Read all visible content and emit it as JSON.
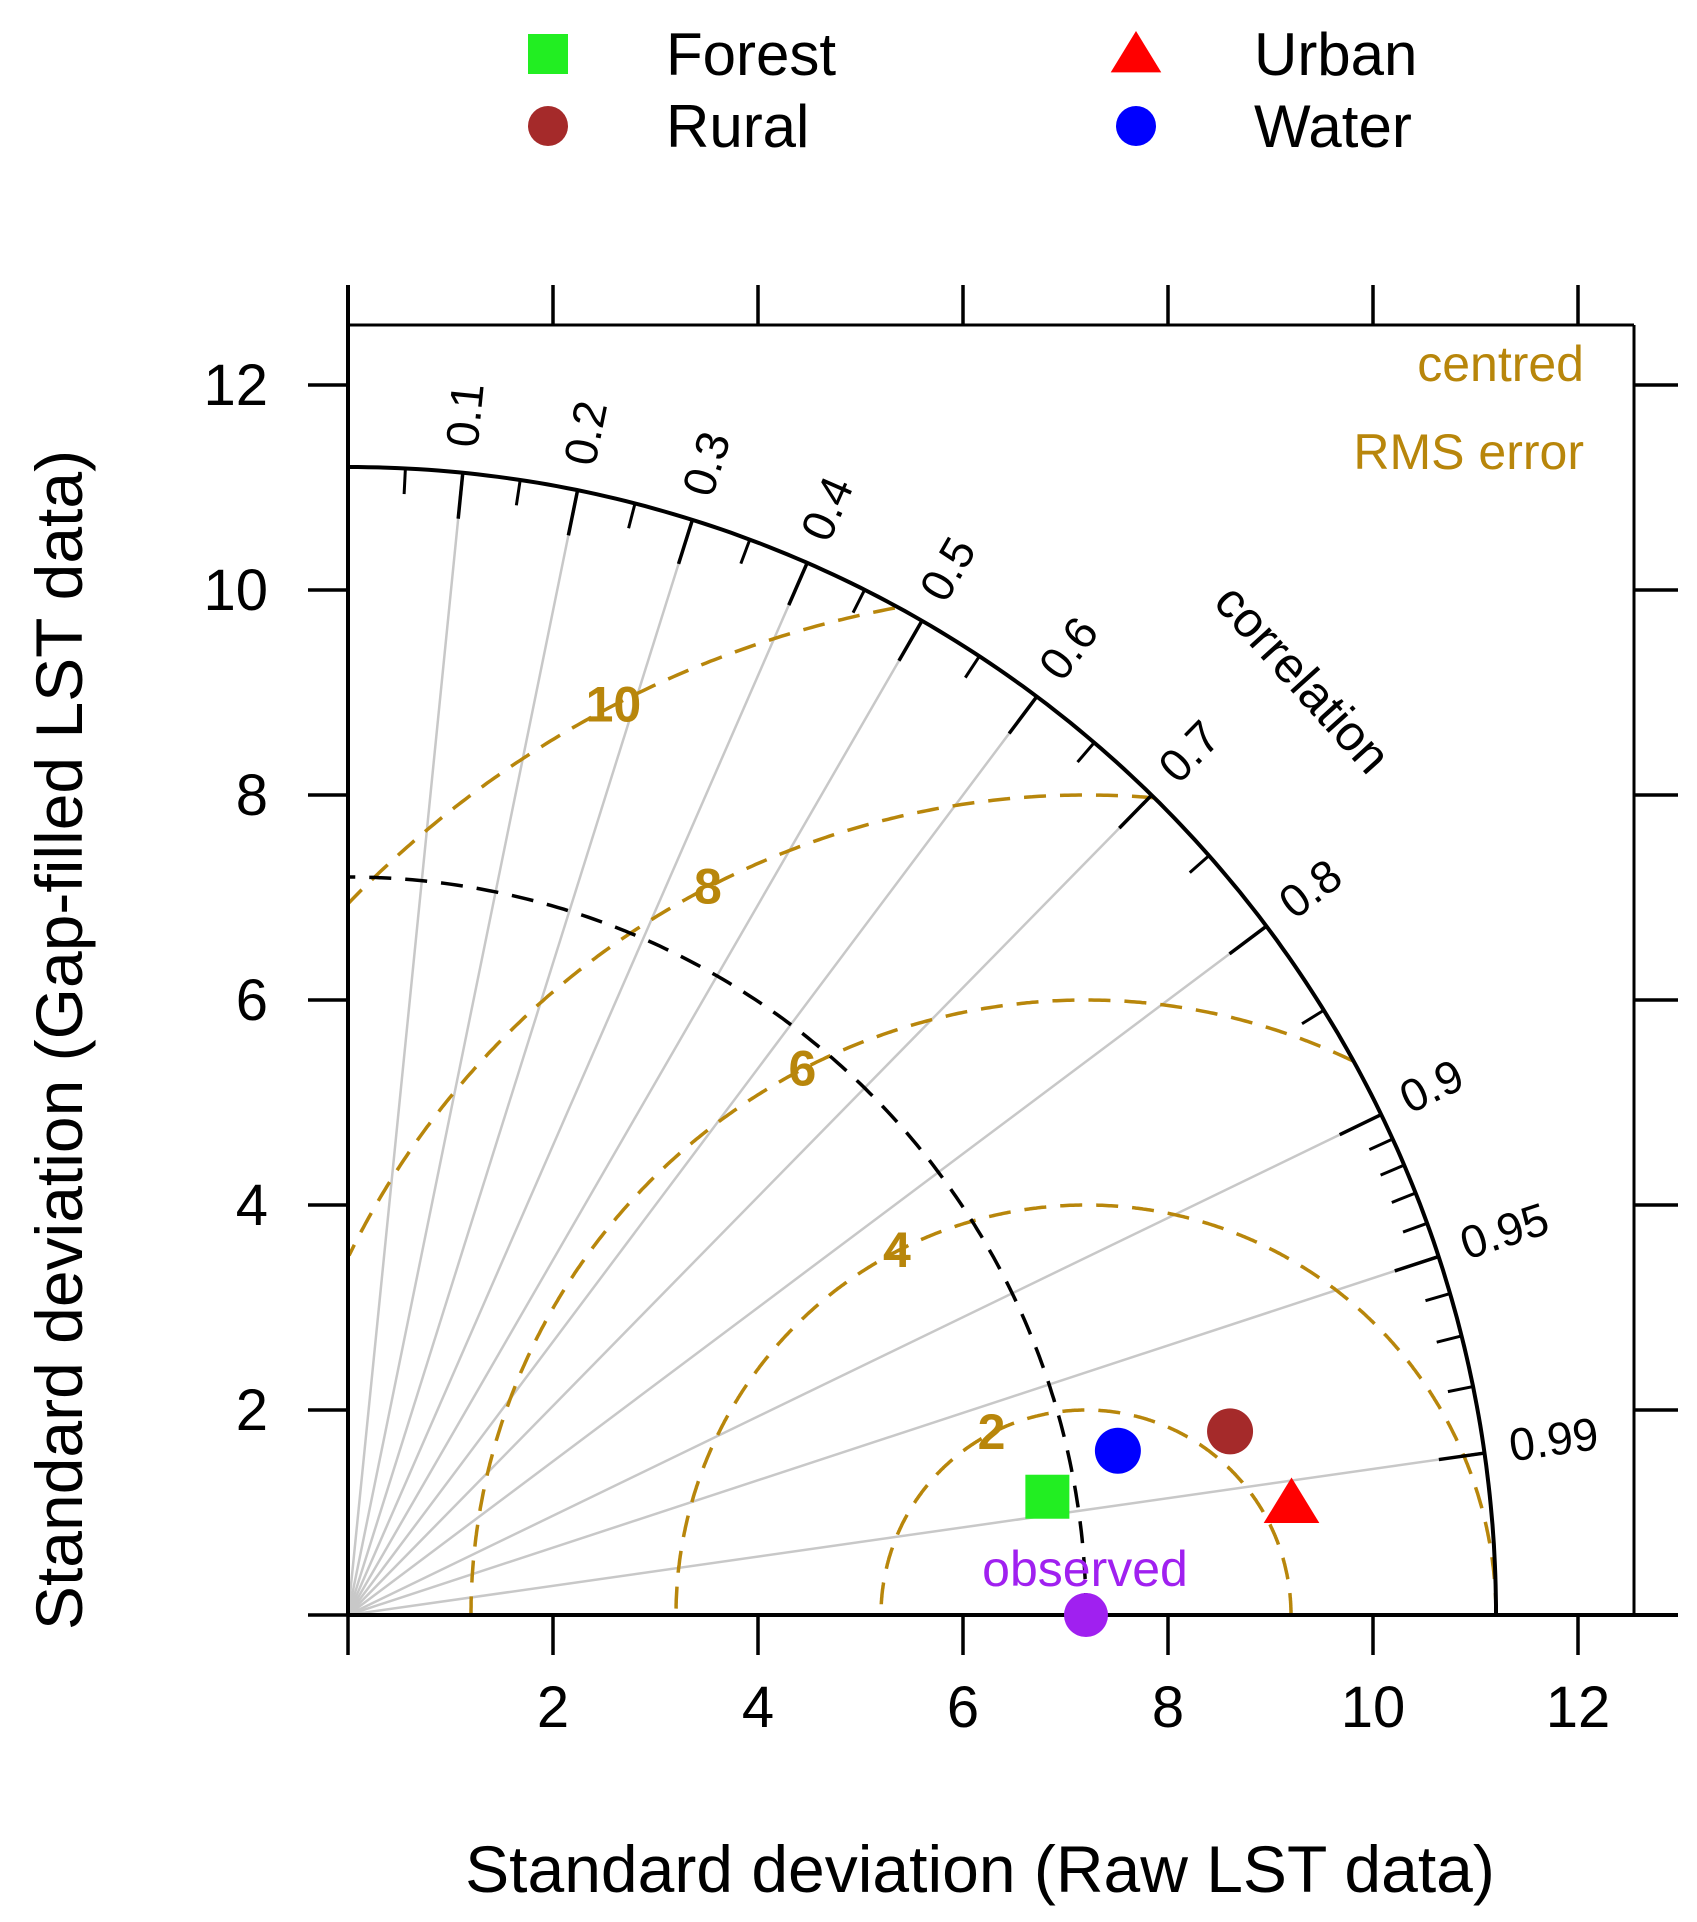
{
  "chart_data": {
    "type": "scatter",
    "subtype": "taylor-diagram",
    "title": "",
    "xlabel": "Standard deviation (Raw LST data)",
    "ylabel": "Standard deviation (Gap-filled LST data)",
    "xlim": [
      0,
      12.6
    ],
    "ylim": [
      0,
      12.6
    ],
    "x_ticks": [
      2,
      4,
      6,
      8,
      10,
      12
    ],
    "y_ticks": [
      2,
      4,
      6,
      8,
      10,
      12
    ],
    "max_sd": 11.2,
    "observed_sd": 7.2,
    "observed_label": "observed",
    "correlation_title": "correlation",
    "correlation_labels": [
      "0.1",
      "0.2",
      "0.3",
      "0.4",
      "0.5",
      "0.6",
      "0.7",
      "0.8",
      "0.9",
      "0.95",
      "0.99"
    ],
    "rms_title_line1": "centred",
    "rms_title_line2": "RMS error",
    "rms_contours": [
      2,
      4,
      6,
      8,
      10
    ],
    "rms_labels": [
      "2",
      "4",
      "6",
      "8",
      "10"
    ],
    "legend_position": "top",
    "series": [
      {
        "name": "Forest",
        "marker": "square",
        "color": "#22EE22",
        "sd": 6.92,
        "correlation": 0.986
      },
      {
        "name": "Rural",
        "marker": "circle",
        "color": "#A52A2A",
        "sd": 8.79,
        "correlation": 0.979
      },
      {
        "name": "Urban",
        "marker": "triangle",
        "color": "#FF0000",
        "sd": 9.27,
        "correlation": 0.993
      },
      {
        "name": "Water",
        "marker": "circle",
        "color": "#0000FF",
        "sd": 7.68,
        "correlation": 0.978
      }
    ],
    "colors": {
      "rms": "#B8860B",
      "observed": "#A020F0",
      "grid": "#c8c8c8",
      "axis": "#000000"
    }
  }
}
